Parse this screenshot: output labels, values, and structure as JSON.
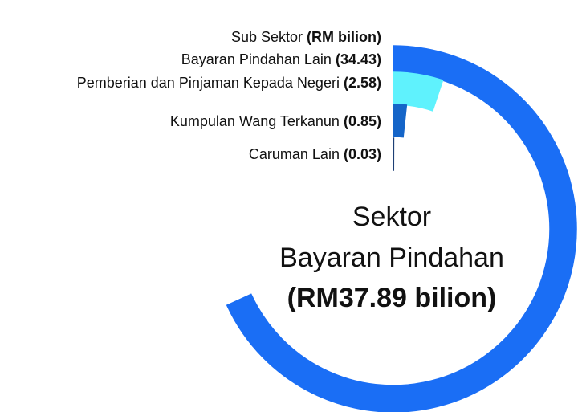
{
  "chart_data": {
    "type": "radial-bar",
    "title": "Sub Sektor",
    "title_unit": "(RM bilion)",
    "center_text": [
      "Sektor",
      "Bayaran Pindahan",
      "(RM37.89 bilion)"
    ],
    "xlim": [
      0,
      37.89
    ],
    "series": [
      {
        "name": "Bayaran Pindahan Lain",
        "color": "#1a6ef5",
        "values": [
          34.43
        ],
        "value_labels": [
          "(34.43)"
        ]
      },
      {
        "name": "Pemberian dan Pinjaman Kepada Negeri",
        "color": "#5ff2fd",
        "values": [
          2.58
        ],
        "value_labels": [
          "(2.58)"
        ]
      },
      {
        "name": "Kumpulan Wang Terkanun",
        "color": "#1565c8",
        "values": [
          0.85
        ],
        "value_labels": [
          "(0.85)"
        ]
      },
      {
        "name": "Caruman Lain",
        "color": "#1d3f75",
        "values": [
          0.03
        ],
        "value_labels": [
          "(0.03)"
        ]
      }
    ]
  }
}
